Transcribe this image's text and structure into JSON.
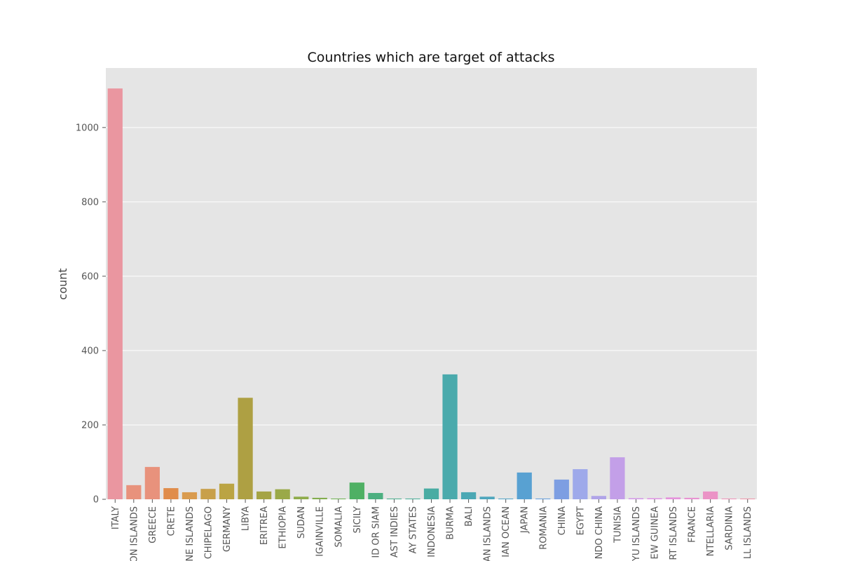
{
  "chart_data": {
    "type": "bar",
    "title": "Countries which are target of attacks",
    "xlabel": "",
    "ylabel": "count",
    "ylim": [
      0,
      1160
    ],
    "yticks": [
      0,
      200,
      400,
      600,
      800,
      1000
    ],
    "grid": true,
    "legend": "none",
    "categories": [
      "ITALY",
      "ON ISLANDS",
      "GREECE",
      "CRETE",
      "NE ISLANDS",
      "CHIPELAGO",
      "GERMANY",
      "LIBYA",
      "ERITREA",
      "ETHIOPIA",
      "SUDAN",
      "IGAINVILLE",
      "SOMALIA",
      "SICILY",
      "ID OR SIAM",
      "AST INDIES",
      "AY STATES",
      "INDONESIA",
      "BURMA",
      "BALI",
      "AN ISLANDS",
      "IAN OCEAN",
      "JAPAN",
      "ROMANIA",
      "CHINA",
      "EGYPT",
      "NDO CHINA",
      "TUNISIA",
      "YU ISLANDS",
      "EW GUINEA",
      "RT ISLANDS",
      "FRANCE",
      "NTELLARIA",
      "SARDINIA",
      "LL ISLANDS"
    ],
    "values": [
      1105,
      38,
      87,
      30,
      19,
      28,
      42,
      273,
      21,
      27,
      7,
      4,
      2,
      45,
      17,
      2,
      2,
      29,
      336,
      19,
      7,
      2,
      72,
      2,
      53,
      81,
      9,
      113,
      3,
      3,
      5,
      4,
      21,
      2,
      2
    ],
    "colors": [
      "#ea96a0",
      "#e8927c",
      "#e8927c",
      "#e08c4a",
      "#d99b4e",
      "#c8a04a",
      "#bba443",
      "#aea043",
      "#a5a445",
      "#9aa948",
      "#8fac4b",
      "#83ad4e",
      "#6fb152",
      "#4fb064",
      "#4caf80",
      "#4aae8e",
      "#49ad99",
      "#49aca3",
      "#4aaaac",
      "#4ba8b4",
      "#4ea6bd",
      "#52a3c7",
      "#58a1d2",
      "#669fdc",
      "#7d9ee2",
      "#9ea9ea",
      "#b0a4e8",
      "#c39fe8",
      "#d49ae8",
      "#df96e4",
      "#e594dc",
      "#e893d2",
      "#eb93c6",
      "#ec94b8",
      "#ec96aa"
    ]
  }
}
